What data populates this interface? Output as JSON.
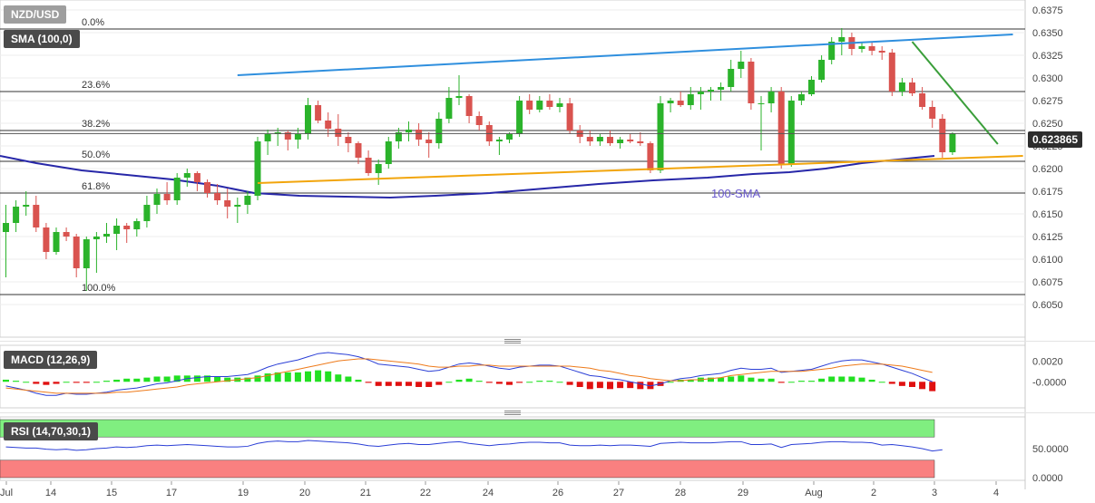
{
  "chart_data": [
    {
      "type": "candlestick",
      "symbol": "NZD/USD",
      "indicator_label": "SMA (100,0)",
      "current_price": "0.623865",
      "ylim": [
        0.603,
        0.638
      ],
      "y_ticks": [
        "0.6375",
        "0.6350",
        "0.6325",
        "0.6300",
        "0.6275",
        "0.6250",
        "0.6225",
        "0.6200",
        "0.6175",
        "0.6150",
        "0.6125",
        "0.6100",
        "0.6075",
        "0.6050"
      ],
      "x_labels": [
        "Jul",
        "14",
        "15",
        "17",
        "19",
        "20",
        "21",
        "22",
        "24",
        "26",
        "27",
        "28",
        "29",
        "Aug",
        "2",
        "3",
        "4"
      ],
      "fib_levels": [
        {
          "label": "0.0%",
          "price": 0.6354
        },
        {
          "label": "23.6%",
          "price": 0.6285
        },
        {
          "label": "38.2%",
          "price": 0.6242
        },
        {
          "label": "50.0%",
          "price": 0.6208
        },
        {
          "label": "61.8%",
          "price": 0.6173
        },
        {
          "label": "100.0%",
          "price": 0.6061
        }
      ],
      "annotations": [
        {
          "text": "100-SMA"
        }
      ],
      "trendlines": [
        {
          "name": "resistance",
          "color": "#2f8fde",
          "points": [
            [
              23.0,
              0.6303
            ],
            [
              100.0,
              0.6348
            ]
          ]
        },
        {
          "name": "support",
          "color": "#f2a50c",
          "points": [
            [
              25.0,
              0.6184
            ],
            [
              101.0,
              0.6214
            ]
          ]
        },
        {
          "name": "descending",
          "color": "#3a9e3a",
          "points": [
            [
              90.0,
              0.634
            ],
            [
              98.5,
              0.6227
            ]
          ]
        }
      ],
      "candles": [
        [
          0.613,
          0.616,
          0.608,
          0.614
        ],
        [
          0.614,
          0.6165,
          0.613,
          0.6158
        ],
        [
          0.6158,
          0.6175,
          0.6148,
          0.616
        ],
        [
          0.616,
          0.617,
          0.613,
          0.6135
        ],
        [
          0.6135,
          0.614,
          0.61,
          0.6108
        ],
        [
          0.6108,
          0.6135,
          0.6105,
          0.613
        ],
        [
          0.613,
          0.6135,
          0.612,
          0.6125
        ],
        [
          0.6125,
          0.6128,
          0.608,
          0.609
        ],
        [
          0.609,
          0.6125,
          0.6065,
          0.6122
        ],
        [
          0.6122,
          0.613,
          0.6085,
          0.6125
        ],
        [
          0.6125,
          0.614,
          0.6118,
          0.6128
        ],
        [
          0.6128,
          0.6145,
          0.611,
          0.6137
        ],
        [
          0.6137,
          0.614,
          0.6118,
          0.6133
        ],
        [
          0.6133,
          0.6145,
          0.6125,
          0.6142
        ],
        [
          0.6142,
          0.617,
          0.6135,
          0.616
        ],
        [
          0.616,
          0.6178,
          0.615,
          0.6172
        ],
        [
          0.6172,
          0.6185,
          0.616,
          0.6165
        ],
        [
          0.6165,
          0.6195,
          0.616,
          0.619
        ],
        [
          0.619,
          0.62,
          0.618,
          0.6195
        ],
        [
          0.6195,
          0.6197,
          0.6175,
          0.6185
        ],
        [
          0.6185,
          0.6188,
          0.6168,
          0.6173
        ],
        [
          0.6173,
          0.6183,
          0.616,
          0.6165
        ],
        [
          0.6165,
          0.6178,
          0.6145,
          0.6158
        ],
        [
          0.6158,
          0.6168,
          0.614,
          0.616
        ],
        [
          0.616,
          0.6175,
          0.615,
          0.617
        ],
        [
          0.617,
          0.6235,
          0.6165,
          0.623
        ],
        [
          0.623,
          0.6243,
          0.6215,
          0.6238
        ],
        [
          0.6238,
          0.6245,
          0.6225,
          0.624
        ],
        [
          0.624,
          0.6242,
          0.622,
          0.6232
        ],
        [
          0.6232,
          0.6245,
          0.6222,
          0.6238
        ],
        [
          0.6238,
          0.6278,
          0.6232,
          0.627
        ],
        [
          0.627,
          0.6275,
          0.625,
          0.6253
        ],
        [
          0.6253,
          0.6262,
          0.6235,
          0.6244
        ],
        [
          0.6244,
          0.626,
          0.6225,
          0.6235
        ],
        [
          0.6235,
          0.624,
          0.6218,
          0.6228
        ],
        [
          0.6228,
          0.623,
          0.6205,
          0.6212
        ],
        [
          0.6212,
          0.622,
          0.6192,
          0.6195
        ],
        [
          0.6195,
          0.621,
          0.6182,
          0.6205
        ],
        [
          0.6205,
          0.6235,
          0.62,
          0.623
        ],
        [
          0.623,
          0.6245,
          0.6222,
          0.624
        ],
        [
          0.624,
          0.6252,
          0.623,
          0.6243
        ],
        [
          0.6243,
          0.625,
          0.6225,
          0.6232
        ],
        [
          0.6232,
          0.624,
          0.6212,
          0.6228
        ],
        [
          0.6228,
          0.6262,
          0.6222,
          0.6255
        ],
        [
          0.6255,
          0.629,
          0.625,
          0.6278
        ],
        [
          0.6278,
          0.6303,
          0.627,
          0.628
        ],
        [
          0.628,
          0.6282,
          0.625,
          0.6258
        ],
        [
          0.6258,
          0.6263,
          0.6242,
          0.6248
        ],
        [
          0.6248,
          0.6252,
          0.6225,
          0.623
        ],
        [
          0.623,
          0.6235,
          0.6215,
          0.6232
        ],
        [
          0.6232,
          0.624,
          0.6228,
          0.6238
        ],
        [
          0.6238,
          0.628,
          0.6235,
          0.6275
        ],
        [
          0.6275,
          0.6282,
          0.626,
          0.6265
        ],
        [
          0.6265,
          0.628,
          0.6262,
          0.6275
        ],
        [
          0.6275,
          0.6282,
          0.6265,
          0.6268
        ],
        [
          0.6268,
          0.6278,
          0.6262,
          0.6272
        ],
        [
          0.6272,
          0.6278,
          0.6238,
          0.6242
        ],
        [
          0.6242,
          0.6248,
          0.6228,
          0.6235
        ],
        [
          0.6235,
          0.6242,
          0.6225,
          0.623
        ],
        [
          0.623,
          0.6238,
          0.6225,
          0.6235
        ],
        [
          0.6235,
          0.6242,
          0.6225,
          0.6228
        ],
        [
          0.6228,
          0.6235,
          0.6222,
          0.6232
        ],
        [
          0.6232,
          0.6238,
          0.6228,
          0.623
        ],
        [
          0.623,
          0.624,
          0.6225,
          0.6228
        ],
        [
          0.6228,
          0.623,
          0.6195,
          0.6198
        ],
        [
          0.6198,
          0.628,
          0.6195,
          0.6272
        ],
        [
          0.6272,
          0.6278,
          0.6262,
          0.6275
        ],
        [
          0.6275,
          0.6285,
          0.6268,
          0.627
        ],
        [
          0.627,
          0.629,
          0.6265,
          0.6282
        ],
        [
          0.6282,
          0.629,
          0.6265,
          0.6285
        ],
        [
          0.6285,
          0.629,
          0.6275,
          0.6287
        ],
        [
          0.6287,
          0.6295,
          0.6275,
          0.629
        ],
        [
          0.629,
          0.632,
          0.6285,
          0.631
        ],
        [
          0.631,
          0.633,
          0.63,
          0.6318
        ],
        [
          0.6318,
          0.6322,
          0.6265,
          0.6272
        ],
        [
          0.6272,
          0.628,
          0.622,
          0.6272
        ],
        [
          0.6272,
          0.629,
          0.6262,
          0.6285
        ],
        [
          0.6285,
          0.629,
          0.62,
          0.6205
        ],
        [
          0.6205,
          0.628,
          0.6202,
          0.6275
        ],
        [
          0.6275,
          0.6285,
          0.627,
          0.6282
        ],
        [
          0.6282,
          0.6302,
          0.628,
          0.6298
        ],
        [
          0.6298,
          0.6325,
          0.6295,
          0.632
        ],
        [
          0.632,
          0.6345,
          0.6315,
          0.634
        ],
        [
          0.634,
          0.6355,
          0.6325,
          0.6345
        ],
        [
          0.6345,
          0.635,
          0.6325,
          0.6332
        ],
        [
          0.6332,
          0.634,
          0.6328,
          0.6335
        ],
        [
          0.6335,
          0.634,
          0.6325,
          0.633
        ],
        [
          0.633,
          0.6335,
          0.632,
          0.6328
        ],
        [
          0.6328,
          0.6332,
          0.628,
          0.6285
        ],
        [
          0.6285,
          0.63,
          0.628,
          0.6295
        ],
        [
          0.6295,
          0.63,
          0.628,
          0.6283
        ],
        [
          0.6283,
          0.629,
          0.6265,
          0.6268
        ],
        [
          0.6268,
          0.6275,
          0.6245,
          0.6255
        ],
        [
          0.6255,
          0.626,
          0.6212,
          0.6218
        ],
        [
          0.6218,
          0.624,
          0.6215,
          0.6239
        ]
      ]
    },
    {
      "type": "macd",
      "label": "MACD (12,26,9)",
      "y_ticks": [
        "0.0020",
        "-0.0000"
      ],
      "ylim": [
        -0.0025,
        0.0035
      ],
      "macd": [
        -0.0004,
        -0.0006,
        -0.0008,
        -0.0011,
        -0.0013,
        -0.0013,
        -0.0011,
        -0.0012,
        -0.0012,
        -0.0011,
        -0.001,
        -0.0008,
        -0.0007,
        -0.0006,
        -0.0004,
        -0.0002,
        -0.0001,
        0.0001,
        0.0003,
        0.0004,
        0.0005,
        0.0005,
        0.0005,
        0.0006,
        0.0007,
        0.001,
        0.0014,
        0.0017,
        0.0019,
        0.0021,
        0.0024,
        0.0027,
        0.0028,
        0.0027,
        0.0026,
        0.0024,
        0.0021,
        0.0017,
        0.0016,
        0.0015,
        0.0014,
        0.0012,
        0.001,
        0.0011,
        0.0014,
        0.0017,
        0.0018,
        0.0017,
        0.0015,
        0.0013,
        0.0012,
        0.0014,
        0.0015,
        0.0016,
        0.0016,
        0.0015,
        0.0012,
        0.0009,
        0.0006,
        0.0005,
        0.0003,
        0.0002,
        0.0,
        -0.0002,
        -0.0004,
        -0.0002,
        0.0001,
        0.0003,
        0.0004,
        0.0006,
        0.0007,
        0.0008,
        0.0011,
        0.0013,
        0.0012,
        0.0012,
        0.0013,
        0.0009,
        0.001,
        0.0011,
        0.0012,
        0.0015,
        0.0018,
        0.002,
        0.0021,
        0.0021,
        0.0019,
        0.0017,
        0.0014,
        0.0011,
        0.0008,
        0.0004,
        0.0
      ],
      "signal": [
        -0.0006,
        -0.0007,
        -0.0008,
        -0.0009,
        -0.001,
        -0.0011,
        -0.0011,
        -0.0011,
        -0.0011,
        -0.0011,
        -0.0011,
        -0.001,
        -0.001,
        -0.0009,
        -0.0008,
        -0.0007,
        -0.0006,
        -0.0005,
        -0.0003,
        -0.0002,
        -0.0001,
        0.0,
        0.0001,
        0.0002,
        0.0003,
        0.0004,
        0.0006,
        0.0008,
        0.001,
        0.0012,
        0.0014,
        0.0016,
        0.0018,
        0.002,
        0.0021,
        0.0022,
        0.0022,
        0.0021,
        0.002,
        0.0019,
        0.0018,
        0.0017,
        0.0015,
        0.0014,
        0.0014,
        0.0015,
        0.0015,
        0.0016,
        0.0016,
        0.0015,
        0.0015,
        0.0015,
        0.0015,
        0.0015,
        0.0015,
        0.0015,
        0.0015,
        0.0014,
        0.0013,
        0.0011,
        0.001,
        0.0008,
        0.0006,
        0.0005,
        0.0003,
        0.0002,
        0.0001,
        0.0001,
        0.0002,
        0.0002,
        0.0003,
        0.0004,
        0.0006,
        0.0007,
        0.0008,
        0.0009,
        0.001,
        0.001,
        0.001,
        0.001,
        0.0011,
        0.0012,
        0.0013,
        0.0015,
        0.0016,
        0.0017,
        0.0017,
        0.0017,
        0.0016,
        0.0015,
        0.0013,
        0.0011,
        0.0009
      ]
    },
    {
      "type": "rsi",
      "label": "RSI (14,70,30,1)",
      "y_ticks": [
        "50.0000",
        "0.0000"
      ],
      "overbought": 70,
      "oversold": 30,
      "values": [
        53,
        52,
        51,
        51,
        49,
        48,
        49,
        47,
        48,
        50,
        51,
        53,
        52,
        53,
        55,
        56,
        55,
        56,
        57,
        56,
        55,
        54,
        53,
        53,
        54,
        59,
        62,
        63,
        62,
        62,
        64,
        63,
        62,
        61,
        60,
        58,
        55,
        54,
        56,
        58,
        59,
        57,
        57,
        59,
        61,
        62,
        59,
        57,
        55,
        57,
        58,
        60,
        61,
        61,
        60,
        60,
        56,
        55,
        55,
        56,
        55,
        56,
        56,
        55,
        54,
        59,
        60,
        61,
        60,
        60,
        60,
        61,
        62,
        62,
        57,
        57,
        58,
        52,
        57,
        58,
        59,
        61,
        62,
        62,
        61,
        61,
        60,
        56,
        57,
        55,
        53,
        50,
        46,
        48
      ]
    }
  ]
}
